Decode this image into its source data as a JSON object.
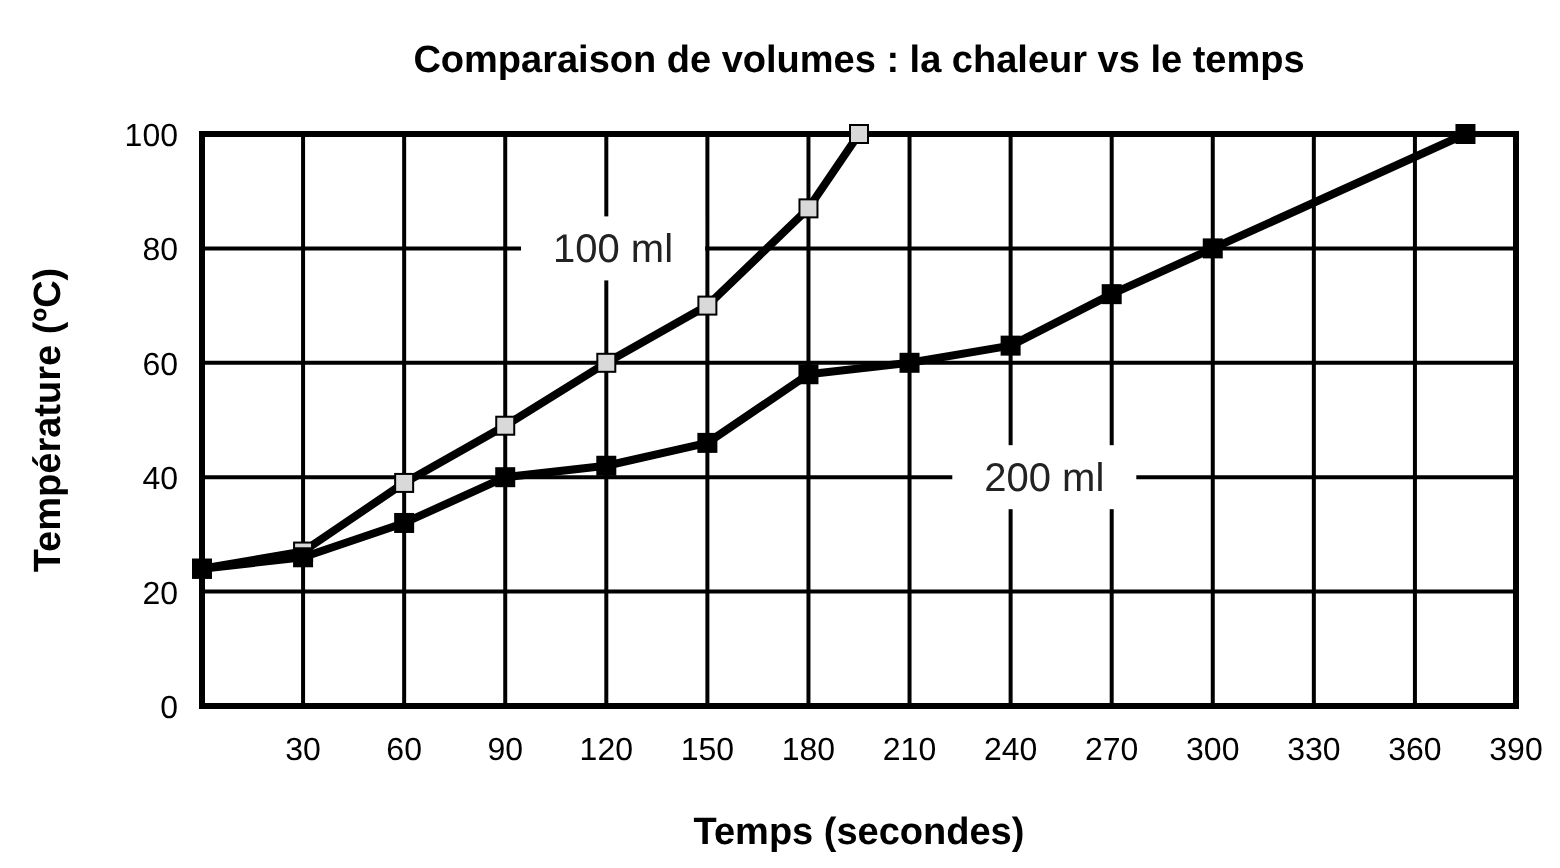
{
  "chart_data": {
    "type": "line",
    "title": "Comparaison de volumes : la chaleur vs le temps",
    "xlabel": "Temps (secondes)",
    "ylabel": "Température (ºC)",
    "xlim": [
      0,
      390
    ],
    "xticks": [
      30,
      60,
      90,
      120,
      150,
      180,
      210,
      240,
      270,
      300,
      330,
      360,
      390
    ],
    "ylim": [
      0,
      100
    ],
    "yticks": [
      0,
      20,
      40,
      60,
      80,
      100
    ],
    "grid": true,
    "marker": "square",
    "line_style": "solid",
    "series": [
      {
        "name": "100 ml",
        "color": "#000000",
        "x": [
          0,
          30,
          60,
          90,
          120,
          150,
          180,
          195
        ],
        "values": [
          24,
          27,
          39,
          49,
          60,
          70,
          87,
          100
        ]
      },
      {
        "name": "200 ml",
        "color": "#000000",
        "x": [
          0,
          30,
          60,
          90,
          120,
          150,
          180,
          210,
          240,
          270,
          300,
          375
        ],
        "values": [
          24,
          26,
          32,
          40,
          42,
          46,
          58,
          60,
          63,
          72,
          80,
          100
        ]
      }
    ]
  }
}
